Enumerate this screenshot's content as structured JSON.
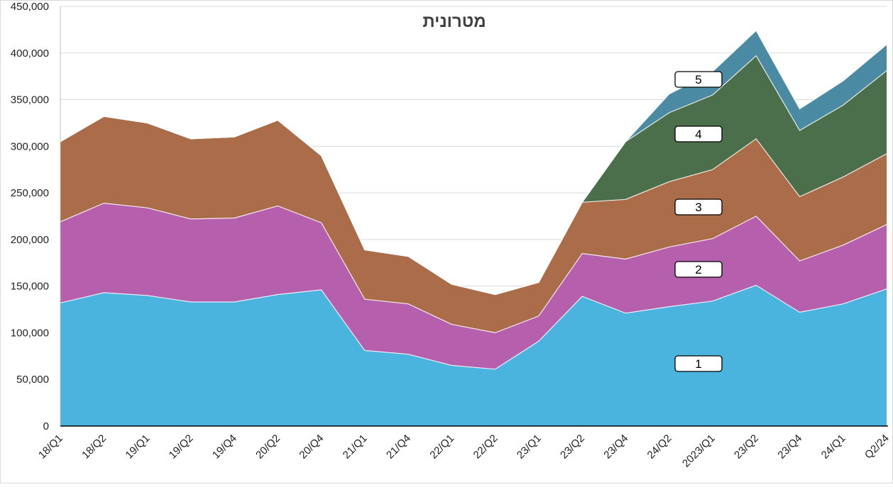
{
  "chart_data": {
    "type": "area",
    "stacked": true,
    "title": "מטרונית",
    "xlabel": "",
    "ylabel": "",
    "ylim": [
      0,
      450000
    ],
    "yticks": [
      0,
      50000,
      100000,
      150000,
      200000,
      250000,
      300000,
      350000,
      400000,
      450000
    ],
    "ytick_labels": [
      "0",
      "50,000",
      "100,000",
      "150,000",
      "200,000",
      "250,000",
      "300,000",
      "350,000",
      "400,000",
      "450,000"
    ],
    "grid": true,
    "legend": "none",
    "categories": [
      "18/Q1",
      "18/Q2",
      "19/Q1",
      "19/Q2",
      "19/Q4",
      "20/Q2",
      "20/Q4",
      "21/Q1",
      "21/Q4",
      "22/Q1",
      "22/Q2",
      "23/Q1",
      "23/Q2",
      "23/Q4",
      "24/Q2",
      "2023/Q1",
      "23/Q2",
      "23/Q4",
      "24/Q1",
      "Q2/24"
    ],
    "series": [
      {
        "name": "1",
        "color": "#4ab3de",
        "values": [
          132000,
          143000,
          140000,
          133000,
          133000,
          141000,
          146000,
          81000,
          77000,
          65000,
          61000,
          91000,
          139000,
          121000,
          128000,
          134000,
          151000,
          122000,
          131000,
          147000
        ]
      },
      {
        "name": "2",
        "color": "#b55fad",
        "values": [
          87000,
          96000,
          94000,
          89000,
          90000,
          95000,
          72000,
          55000,
          54000,
          44000,
          39000,
          27000,
          46000,
          58000,
          64000,
          67000,
          74000,
          55000,
          63000,
          69000
        ]
      },
      {
        "name": "3",
        "color": "#ab6c4a",
        "values": [
          86000,
          93000,
          91000,
          86000,
          87000,
          92000,
          72000,
          53000,
          51000,
          43000,
          41000,
          36000,
          55000,
          64000,
          70000,
          74000,
          83000,
          69000,
          73000,
          76000
        ]
      },
      {
        "name": "4",
        "color": "#4a6f4a",
        "values": [
          0,
          0,
          0,
          0,
          0,
          0,
          0,
          0,
          0,
          0,
          0,
          0,
          0,
          62000,
          74000,
          80000,
          89000,
          71000,
          77000,
          89000
        ]
      },
      {
        "name": "5",
        "color": "#4a8aa3",
        "values": [
          0,
          0,
          0,
          0,
          0,
          0,
          0,
          0,
          0,
          0,
          0,
          0,
          0,
          0,
          20000,
          25000,
          27000,
          23000,
          26000,
          28000
        ]
      }
    ],
    "annotations": [
      "1",
      "2",
      "3",
      "4",
      "5"
    ]
  }
}
